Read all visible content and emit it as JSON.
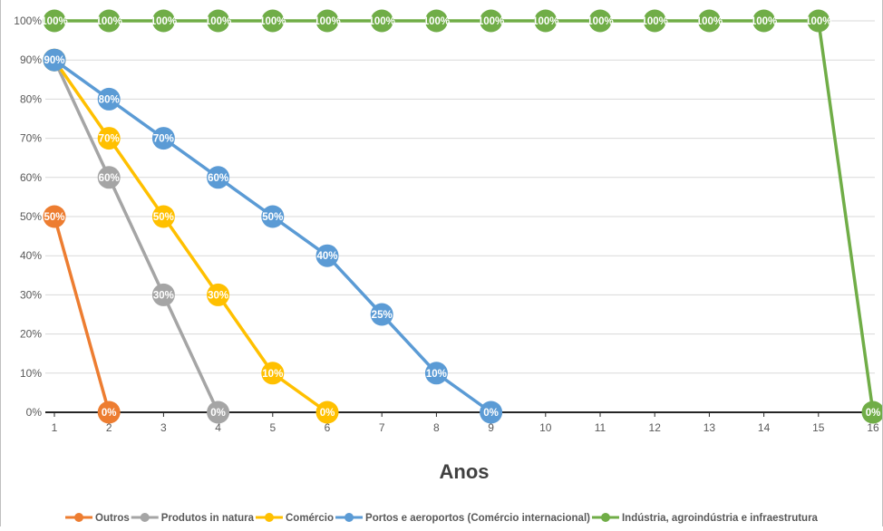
{
  "chart_data": {
    "type": "line",
    "title": "",
    "xlabel": "Anos",
    "ylabel": "",
    "categories": [
      1,
      2,
      3,
      4,
      5,
      6,
      7,
      8,
      9,
      10,
      11,
      12,
      13,
      14,
      15,
      16
    ],
    "ylim": [
      0,
      100
    ],
    "y_ticks": [
      "0%",
      "10%",
      "20%",
      "30%",
      "40%",
      "50%",
      "60%",
      "70%",
      "80%",
      "90%",
      "100%"
    ],
    "grid": "horizontal",
    "legend_position": "bottom",
    "series": [
      {
        "name": "Outros",
        "color": "#ED7D31",
        "points": [
          [
            1,
            50
          ],
          [
            2,
            0
          ]
        ],
        "labels": [
          "50%",
          "0%"
        ]
      },
      {
        "name": "Produtos in natura",
        "color": "#A5A5A5",
        "points": [
          [
            1,
            90
          ],
          [
            2,
            60
          ],
          [
            3,
            30
          ],
          [
            4,
            0
          ]
        ],
        "labels": [
          "",
          "60%",
          "30%",
          "0%"
        ]
      },
      {
        "name": "Comércio",
        "color": "#FFC000",
        "points": [
          [
            1,
            90
          ],
          [
            2,
            70
          ],
          [
            3,
            50
          ],
          [
            4,
            30
          ],
          [
            5,
            10
          ],
          [
            6,
            0
          ]
        ],
        "labels": [
          "",
          "70%",
          "50%",
          "30%",
          "10%",
          "0%"
        ]
      },
      {
        "name": "Portos e aeroportos (Comércio internacional)",
        "color": "#5B9BD5",
        "points": [
          [
            1,
            90
          ],
          [
            2,
            80
          ],
          [
            3,
            70
          ],
          [
            4,
            60
          ],
          [
            5,
            50
          ],
          [
            6,
            40
          ],
          [
            7,
            25
          ],
          [
            8,
            10
          ],
          [
            9,
            0
          ]
        ],
        "labels": [
          "90%",
          "80%",
          "70%",
          "60%",
          "50%",
          "40%",
          "25%",
          "10%",
          "0%"
        ]
      },
      {
        "name": "Indústria, agroindústria e infraestrutura",
        "color": "#70AD47",
        "points": [
          [
            1,
            100
          ],
          [
            2,
            100
          ],
          [
            3,
            100
          ],
          [
            4,
            100
          ],
          [
            5,
            100
          ],
          [
            6,
            100
          ],
          [
            7,
            100
          ],
          [
            8,
            100
          ],
          [
            9,
            100
          ],
          [
            10,
            100
          ],
          [
            11,
            100
          ],
          [
            12,
            100
          ],
          [
            13,
            100
          ],
          [
            14,
            100
          ],
          [
            15,
            100
          ],
          [
            16,
            0
          ]
        ],
        "labels": [
          "100%",
          "100%",
          "100%",
          "100%",
          "100%",
          "100%",
          "100%",
          "100%",
          "100%",
          "100%",
          "100%",
          "100%",
          "100%",
          "100%",
          "100%",
          "0%"
        ]
      }
    ]
  }
}
